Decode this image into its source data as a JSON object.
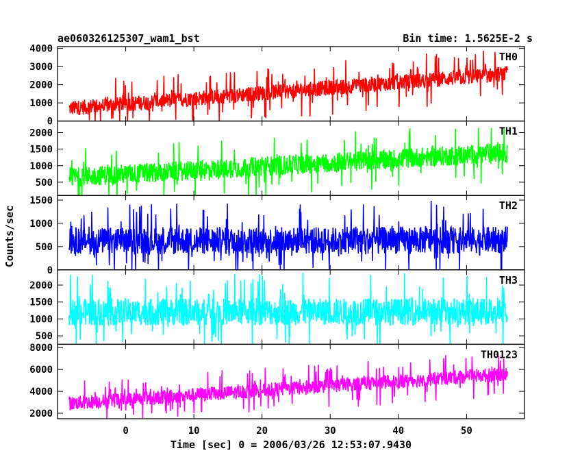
{
  "header": {
    "title": "ae060326125307_wam1_bst",
    "bin_time": "Bin time: 1.5625E-2 s"
  },
  "chart_data": {
    "type": "line",
    "xlabel": "Time [sec] 0 = 2006/03/26 12:53:07.9430",
    "ylabel": "Counts/sec",
    "x_range": [
      -8.3,
      56.0
    ],
    "xlim": [
      -10,
      58.5
    ],
    "x_ticks": [
      0,
      10,
      20,
      30,
      40,
      50
    ],
    "panels": [
      {
        "name": "TH0",
        "color": "#ff0000",
        "ylim": [
          0,
          4100
        ],
        "y_ticks": [
          0,
          1000,
          2000,
          3000,
          4000
        ],
        "start_mean": 700,
        "end_mean": 2600,
        "spread": 420,
        "spike": 1500
      },
      {
        "name": "TH1",
        "color": "#00ff00",
        "ylim": [
          100,
          2350
        ],
        "y_ticks": [
          500,
          1000,
          1500,
          2000
        ],
        "start_mean": 650,
        "end_mean": 1400,
        "spread": 300,
        "spike": 900
      },
      {
        "name": "TH2",
        "color": "#0000ff",
        "ylim": [
          0,
          1600
        ],
        "y_ticks": [
          0,
          500,
          1000,
          1500
        ],
        "start_mean": 620,
        "end_mean": 640,
        "spread": 290,
        "spike": 850
      },
      {
        "name": "TH3",
        "color": "#00ffff",
        "ylim": [
          250,
          2450
        ],
        "y_ticks": [
          500,
          1000,
          1500,
          2000
        ],
        "start_mean": 1200,
        "end_mean": 1220,
        "spread": 400,
        "spike": 1150
      },
      {
        "name": "TH0123",
        "color": "#ff00ff",
        "ylim": [
          1500,
          8300
        ],
        "y_ticks": [
          2000,
          4000,
          6000,
          8000
        ],
        "start_mean": 2900,
        "end_mean": 5600,
        "spread": 650,
        "spike": 2100
      }
    ]
  }
}
